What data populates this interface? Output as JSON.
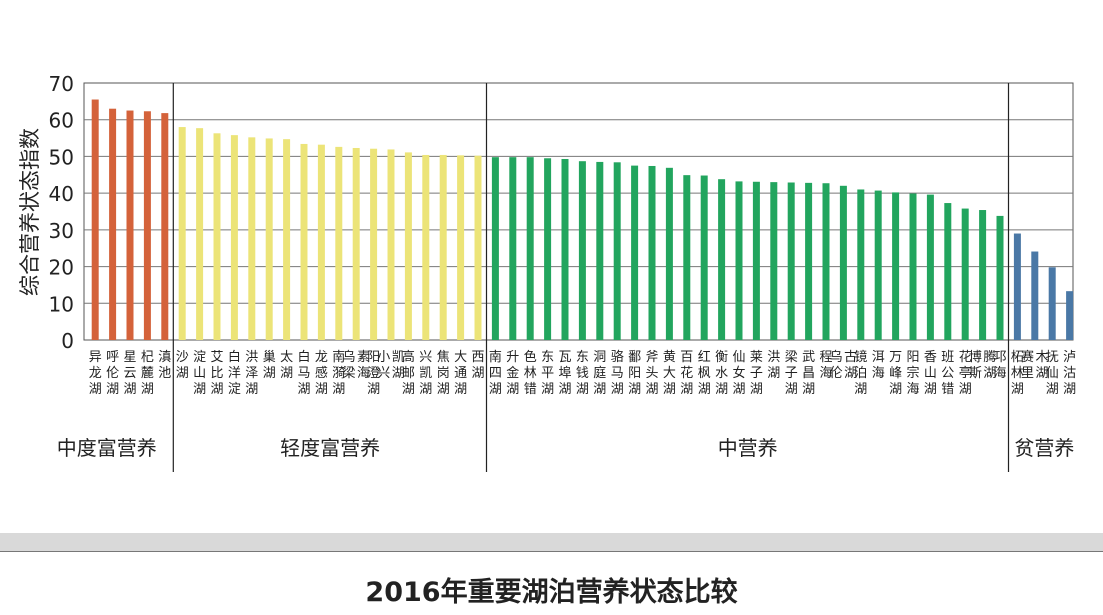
{
  "caption": "2016年重要湖泊营养状态比较",
  "chart_data": {
    "type": "bar",
    "title": "",
    "ylabel": "综合营养状态指数",
    "xlabel": "",
    "ylim": [
      0,
      70
    ],
    "yticks": [
      0,
      10,
      20,
      30,
      40,
      50,
      60,
      70
    ],
    "grid": true,
    "groups": [
      {
        "name": "中度富营养",
        "color": "#d4623a",
        "categories": [
          "异龙湖",
          "呼伦湖",
          "星云湖",
          "杞麓湖",
          "滇池"
        ],
        "values": [
          65.5,
          63.0,
          62.5,
          62.3,
          61.8
        ]
      },
      {
        "name": "轻度富营养",
        "color": "#ece478",
        "categories": [
          "沙湖",
          "淀山湖",
          "艾比湖",
          "白洋淀",
          "洪泽湖",
          "巢湖",
          "太湖",
          "白马湖",
          "龙感湖",
          "南漪湖",
          "乌梁素海",
          "阳澄湖",
          "小兴凯湖",
          "高邮湖",
          "兴凯湖",
          "焦岗湖",
          "大通湖",
          "西湖"
        ],
        "values": [
          58.0,
          57.7,
          56.3,
          55.8,
          55.2,
          54.9,
          54.7,
          53.4,
          53.2,
          52.6,
          52.3,
          52.1,
          51.9,
          51.1,
          50.4,
          50.4,
          50.3,
          50.2
        ]
      },
      {
        "name": "中营养",
        "color": "#22a55e",
        "categories": [
          "南四湖",
          "升金湖",
          "色林错",
          "东平湖",
          "瓦埠湖",
          "东钱湖",
          "洞庭湖",
          "骆马湖",
          "鄱阳湖",
          "斧头湖",
          "黄大湖",
          "百花湖",
          "红枫湖",
          "衡水湖",
          "仙女湖",
          "莱子湖",
          "洪湖",
          "梁子湖",
          "武昌湖",
          "程海",
          "乌伦古湖",
          "镜泊湖",
          "洱海",
          "万峰湖",
          "阳宗海",
          "香山湖",
          "班公错",
          "花亭湖",
          "博斯腾湖",
          "邛海"
        ],
        "values": [
          49.8,
          49.8,
          49.8,
          49.5,
          49.3,
          48.7,
          48.5,
          48.4,
          47.5,
          47.4,
          46.9,
          44.9,
          44.8,
          43.8,
          43.2,
          43.1,
          43.0,
          42.9,
          42.8,
          42.7,
          42.0,
          41.0,
          40.7,
          40.2,
          39.9,
          39.6,
          37.3,
          35.8,
          35.4,
          33.8
        ]
      },
      {
        "name": "贫营养",
        "color": "#4a78a6",
        "categories": [
          "柘林湖",
          "赛里木湖",
          "抚仙湖",
          "泸沽湖"
        ],
        "values": [
          29.0,
          24.1,
          19.8,
          13.3
        ]
      }
    ]
  }
}
